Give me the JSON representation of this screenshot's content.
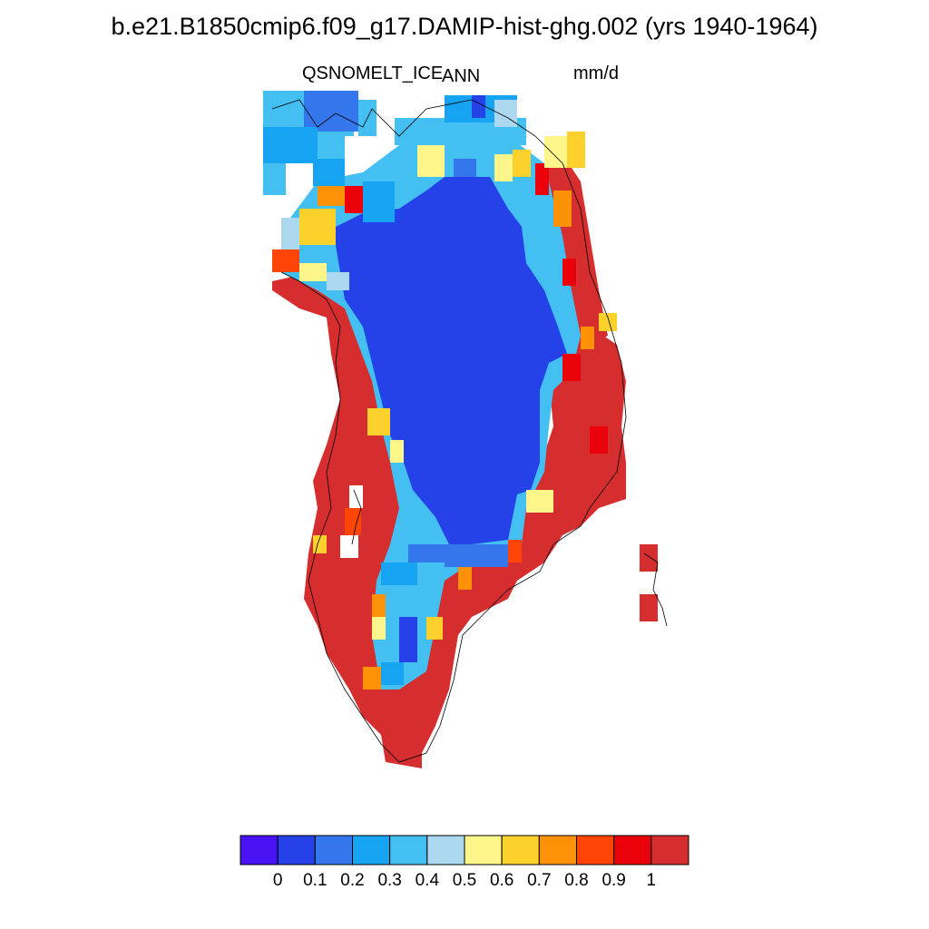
{
  "title": "b.e21.B1850cmip6.f09_g17.DAMIP-hist-ghg.002 (yrs 1940-1964)",
  "variable": "QSNOMELT_ICE",
  "period": "ANN",
  "units": "mm/d",
  "colorbar": {
    "colors": [
      "#4a14f2",
      "#2541e8",
      "#3476ec",
      "#16a4f2",
      "#43bff1",
      "#acd8ef",
      "#fef68a",
      "#fdd12b",
      "#fd9108",
      "#fd4605",
      "#eb0109",
      "#d62d2e"
    ],
    "tick_labels": [
      "0",
      "0.1",
      "0.2",
      "0.3",
      "0.4",
      "0.5",
      "0.6",
      "0.7",
      "0.8",
      "0.9",
      "1"
    ]
  },
  "field_description": "annual mean ice snowmelt over Greenland; interior ice sheet lowest bin, margins highest bin"
}
